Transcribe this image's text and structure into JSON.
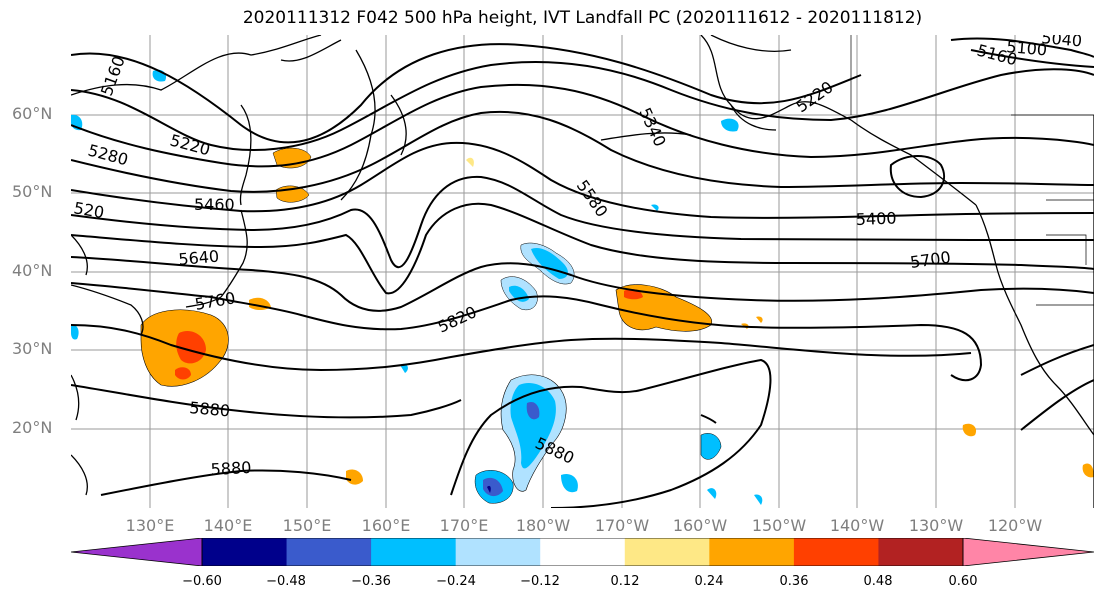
{
  "title": "2020111312 F042 500 hPa height, IVT Landfall PC (2020111612 - 2020111812)",
  "lat_labels": [
    "60°N",
    "50°N",
    "40°N",
    "30°N",
    "20°N"
  ],
  "lon_labels": [
    "130°E",
    "140°E",
    "150°E",
    "160°E",
    "170°E",
    "180°W",
    "170°W",
    "160°W",
    "150°W",
    "140°W",
    "130°W",
    "120°W"
  ],
  "contour_labels": [
    "5160",
    "5280",
    "5220",
    "520",
    "5460",
    "5640",
    "5760",
    "5880",
    "5880",
    "5820",
    "5580",
    "5340",
    "5220",
    "5400",
    "5700",
    "5160",
    "5100",
    "5040",
    "5880"
  ],
  "colorbar": {
    "colors": [
      "#9a32cd",
      "#00008b",
      "#3a5bcc",
      "#00bfff",
      "#b0e2ff",
      "#ffffff",
      "#fee886",
      "#ffa500",
      "#ff4000",
      "#b22222",
      "#ff85a7"
    ],
    "ticks": [
      "−0.60",
      "−0.48",
      "−0.36",
      "−0.24",
      "−0.12",
      "0.12",
      "0.24",
      "0.36",
      "0.48",
      "0.60"
    ]
  }
}
